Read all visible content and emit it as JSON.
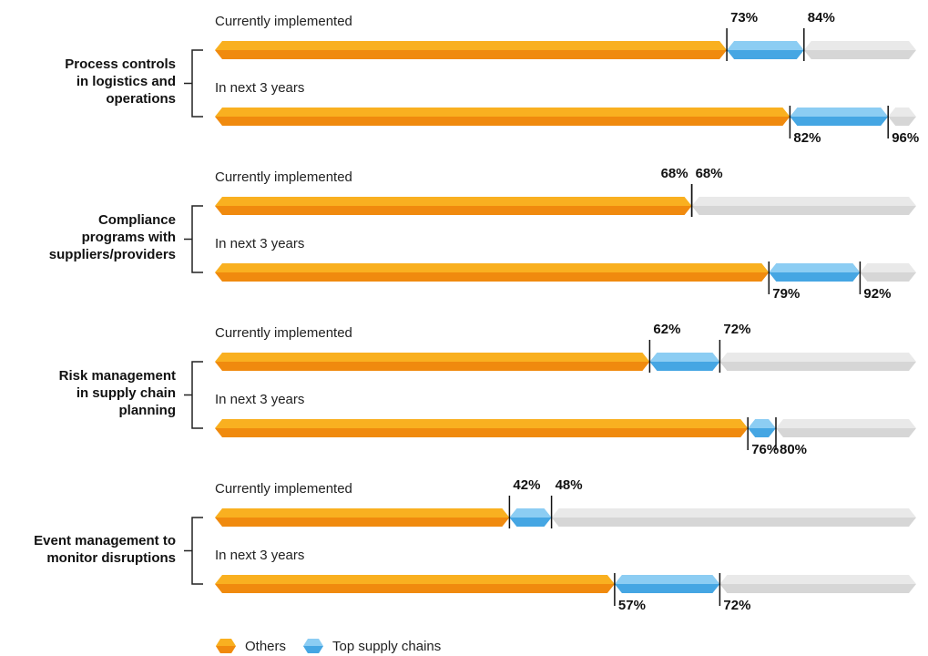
{
  "chart_data": {
    "type": "bar",
    "orientation": "horizontal",
    "title": "",
    "xlim": [
      0,
      100
    ],
    "legend": [
      {
        "name": "Others",
        "color": "#f59a12"
      },
      {
        "name": "Top supply chains",
        "color": "#5ab3ea"
      }
    ],
    "colors": {
      "others": "#f59a12",
      "top": "#5ab3ea",
      "remainder": "#dedede"
    },
    "groups": [
      {
        "label": [
          "Process controls",
          "in logistics and",
          "operations"
        ],
        "rows": [
          {
            "label": "Currently implemented",
            "others": 73,
            "top": 84,
            "labels": {
              "others": "73%",
              "top": "84%"
            }
          },
          {
            "label": "In next 3 years",
            "others": 82,
            "top": 96,
            "labels": {
              "others": "82%",
              "top": "96%"
            }
          }
        ]
      },
      {
        "label": [
          "Compliance",
          "programs with",
          "suppliers/providers"
        ],
        "rows": [
          {
            "label": "Currently implemented",
            "others": 68,
            "top": 68,
            "labels": {
              "others": "68%",
              "top": "68%"
            }
          },
          {
            "label": "In next 3 years",
            "others": 79,
            "top": 92,
            "labels": {
              "others": "79%",
              "top": "92%"
            }
          }
        ]
      },
      {
        "label": [
          "Risk management",
          "in supply chain",
          "planning"
        ],
        "rows": [
          {
            "label": "Currently implemented",
            "others": 62,
            "top": 72,
            "labels": {
              "others": "62%",
              "top": "72%"
            }
          },
          {
            "label": "In next 3 years",
            "others": 76,
            "top": 80,
            "labels": {
              "others": "76%",
              "top": "80%"
            }
          }
        ]
      },
      {
        "label": [
          "Event management to",
          "monitor disruptions"
        ],
        "rows": [
          {
            "label": "Currently implemented",
            "others": 42,
            "top": 48,
            "labels": {
              "others": "42%",
              "top": "48%"
            }
          },
          {
            "label": "In next 3 years",
            "others": 57,
            "top": 72,
            "labels": {
              "others": "57%",
              "top": "72%"
            }
          }
        ]
      }
    ]
  }
}
